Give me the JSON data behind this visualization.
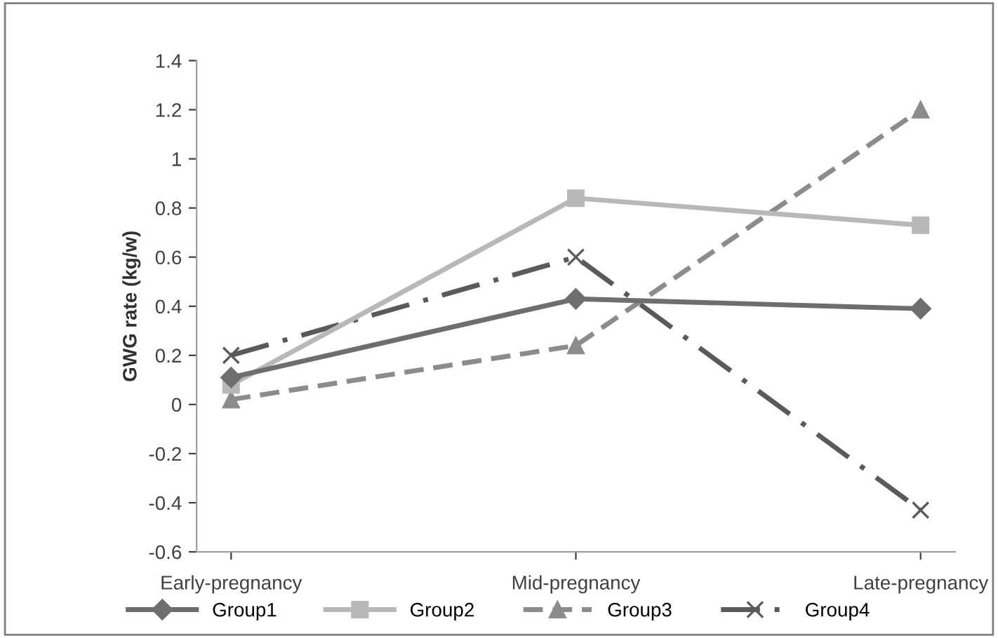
{
  "chart_data": {
    "type": "line",
    "ylabel": "GWG rate (kg/w)",
    "categories": [
      "Early-pregnancy",
      "Mid-pregnancy",
      "Late-pregnancy"
    ],
    "series": [
      {
        "name": "Group1",
        "color": "#6e6e6e",
        "values": [
          0.11,
          0.43,
          0.39
        ],
        "marker": "diamond",
        "line_style": "solid"
      },
      {
        "name": "Group2",
        "color": "#b8b8b8",
        "values": [
          0.08,
          0.84,
          0.73
        ],
        "marker": "square",
        "line_style": "solid"
      },
      {
        "name": "Group3",
        "color": "#8c8c8c",
        "values": [
          0.02,
          0.24,
          1.2
        ],
        "marker": "triangle",
        "line_style": "dashed"
      },
      {
        "name": "Group4",
        "color": "#5a5a5a",
        "values": [
          0.2,
          0.6,
          -0.43
        ],
        "marker": "cross",
        "line_style": "dashdot"
      }
    ],
    "ylim": [
      -0.6,
      1.4
    ],
    "yticks": [
      -0.6,
      -0.4,
      -0.2,
      0,
      0.2,
      0.4,
      0.6,
      0.8,
      1,
      1.2,
      1.4
    ],
    "grid": false,
    "legend": "bottom"
  }
}
